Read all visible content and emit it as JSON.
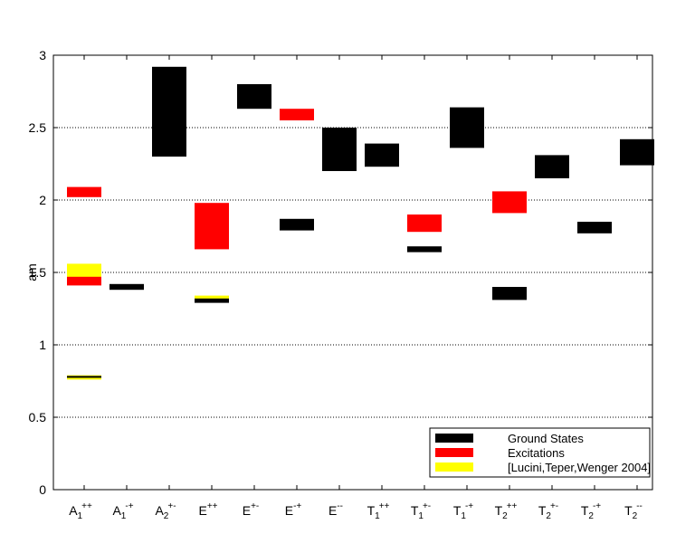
{
  "chart_data": {
    "type": "bar",
    "ylabel": "am",
    "ylim": [
      0,
      3
    ],
    "yticks": [
      "0",
      "0.5",
      "1",
      "1.5",
      "2",
      "2.5",
      "3"
    ],
    "ytick_values": [
      0,
      0.5,
      1,
      1.5,
      2,
      2.5,
      3
    ],
    "grid": true,
    "legend_position": "bottom-right",
    "categories": [
      {
        "base": "A",
        "sub": "1",
        "sup": "++"
      },
      {
        "base": "A",
        "sub": "1",
        "sup": "-+"
      },
      {
        "base": "A",
        "sub": "2",
        "sup": "+-"
      },
      {
        "base": "E",
        "sub": "",
        "sup": "++"
      },
      {
        "base": "E",
        "sub": "",
        "sup": "+-"
      },
      {
        "base": "E",
        "sub": "",
        "sup": "-+"
      },
      {
        "base": "E",
        "sub": "",
        "sup": "--"
      },
      {
        "base": "T",
        "sub": "1",
        "sup": "++"
      },
      {
        "base": "T",
        "sub": "1",
        "sup": "+-"
      },
      {
        "base": "T",
        "sub": "1",
        "sup": "-+"
      },
      {
        "base": "T",
        "sub": "2",
        "sup": "++"
      },
      {
        "base": "T",
        "sub": "2",
        "sup": "+-"
      },
      {
        "base": "T",
        "sub": "2",
        "sup": "-+"
      },
      {
        "base": "T",
        "sub": "2",
        "sup": "--"
      }
    ],
    "series": [
      {
        "name": "Ground States",
        "color": "#000000"
      },
      {
        "name": "Excitations",
        "color": "#ff0000"
      },
      {
        "name": "[Lucini,Teper,Wenger 2004]",
        "color": "#ffff00"
      }
    ],
    "boxes": [
      {
        "category": 0,
        "series": 2,
        "low": 1.46,
        "high": 1.56
      },
      {
        "category": 0,
        "series": 1,
        "low": 1.41,
        "high": 1.47
      },
      {
        "category": 0,
        "series": 1,
        "low": 2.02,
        "high": 2.09
      },
      {
        "category": 0,
        "series": 2,
        "low": 0.76,
        "high": 0.79
      },
      {
        "category": 0,
        "series": 0,
        "low": 0.775,
        "high": 0.785
      },
      {
        "category": 1,
        "series": 0,
        "low": 1.38,
        "high": 1.42
      },
      {
        "category": 2,
        "series": 0,
        "low": 2.3,
        "high": 2.92
      },
      {
        "category": 3,
        "series": 1,
        "low": 1.66,
        "high": 1.98
      },
      {
        "category": 3,
        "series": 2,
        "low": 1.31,
        "high": 1.34
      },
      {
        "category": 3,
        "series": 0,
        "low": 1.29,
        "high": 1.32
      },
      {
        "category": 4,
        "series": 0,
        "low": 2.63,
        "high": 2.8
      },
      {
        "category": 5,
        "series": 1,
        "low": 2.55,
        "high": 2.63
      },
      {
        "category": 5,
        "series": 0,
        "low": 1.79,
        "high": 1.87
      },
      {
        "category": 6,
        "series": 0,
        "low": 2.2,
        "high": 2.5
      },
      {
        "category": 7,
        "series": 0,
        "low": 2.23,
        "high": 2.39
      },
      {
        "category": 8,
        "series": 1,
        "low": 1.78,
        "high": 1.9
      },
      {
        "category": 8,
        "series": 0,
        "low": 1.64,
        "high": 1.68
      },
      {
        "category": 9,
        "series": 0,
        "low": 2.36,
        "high": 2.64
      },
      {
        "category": 10,
        "series": 1,
        "low": 1.91,
        "high": 2.06
      },
      {
        "category": 10,
        "series": 0,
        "low": 1.31,
        "high": 1.4
      },
      {
        "category": 11,
        "series": 0,
        "low": 2.15,
        "high": 2.31
      },
      {
        "category": 12,
        "series": 0,
        "low": 1.77,
        "high": 1.85
      },
      {
        "category": 13,
        "series": 0,
        "low": 2.24,
        "high": 2.42
      }
    ]
  }
}
